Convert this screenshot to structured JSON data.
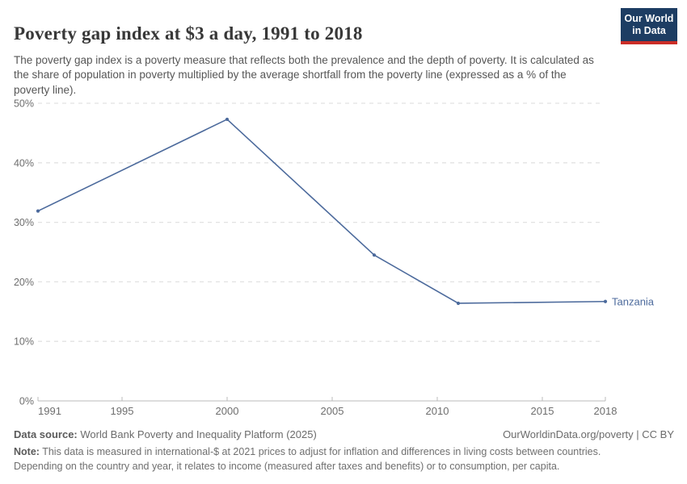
{
  "header": {
    "title": "Poverty gap index at $3 a day, 1991 to 2018",
    "subtitle": "The poverty gap index is a poverty measure that reflects both the prevalence and the depth of poverty. It is calculated as the share of population in poverty multiplied by the average shortfall from the poverty line (expressed as a % of the poverty line).",
    "logo": {
      "line1": "Our World",
      "line2": "in Data",
      "bg_color": "#1d3d63",
      "bar_color": "#cb2d27"
    }
  },
  "chart_data": {
    "type": "line",
    "title": "Poverty gap index at $3 a day, 1991 to 2018",
    "series": [
      {
        "name": "Tanzania",
        "color": "#4c6a9c",
        "x": [
          1991,
          2000,
          2007,
          2011,
          2018
        ],
        "values": [
          31.9,
          47.3,
          24.5,
          16.4,
          16.7
        ]
      }
    ],
    "xlabel": "",
    "ylabel": "",
    "xlim": [
      1991,
      2018
    ],
    "ylim": [
      0,
      50
    ],
    "x_ticks": [
      1991,
      1995,
      2000,
      2005,
      2010,
      2015,
      2018
    ],
    "y_ticks": [
      0,
      10,
      20,
      30,
      40,
      50
    ],
    "y_tick_suffix": "%",
    "grid": "horizontal-dashed",
    "legend_position": "end-of-line-label",
    "entity_label": "Tanzania",
    "colors": {
      "line": "#4c6a9c",
      "gridline": "#e2e2e2",
      "axis": "#bbbbbb",
      "tick_label": "#6e6e6e"
    }
  },
  "footer": {
    "source_label": "Data source:",
    "source_text": " World Bank Poverty and Inequality Platform (2025)",
    "link_text": "OurWorldinData.org/poverty | CC BY",
    "note_label": "Note:",
    "note_text": " This data is measured in international-$ at 2021 prices to adjust for inflation and differences in living costs between countries. Depending on the country and year, it relates to income (measured after taxes and benefits) or to consumption, per capita."
  }
}
